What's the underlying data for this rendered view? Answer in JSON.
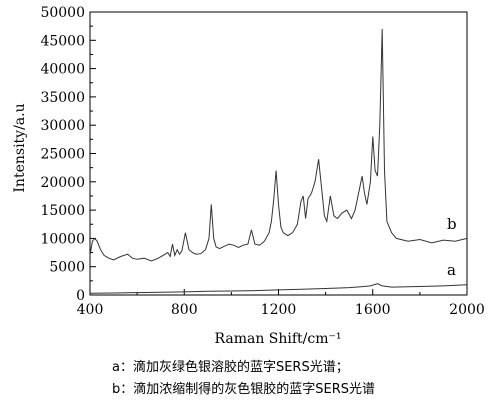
{
  "chart_data": {
    "type": "line",
    "xlabel": "Raman Shift/cm⁻¹",
    "ylabel": "Intensity/a.u",
    "xlim": [
      400,
      2000
    ],
    "ylim": [
      0,
      50000
    ],
    "x_ticks": [
      "400",
      "800",
      "1200",
      "1600",
      "2000"
    ],
    "y_ticks": [
      "0",
      "5000",
      "10000",
      "15000",
      "20000",
      "25000",
      "30000",
      "35000",
      "40000",
      "45000",
      "50000"
    ],
    "grid": false,
    "series": [
      {
        "name": "a",
        "x": [
          400,
          500,
          600,
          700,
          800,
          900,
          1000,
          1100,
          1200,
          1300,
          1400,
          1500,
          1550,
          1590,
          1620,
          1640,
          1680,
          1800,
          1900,
          2000
        ],
        "y": [
          300,
          350,
          420,
          480,
          550,
          650,
          700,
          780,
          900,
          1000,
          1150,
          1300,
          1450,
          1600,
          2000,
          1600,
          1400,
          1500,
          1600,
          1800
        ]
      },
      {
        "name": "b",
        "x": [
          400,
          410,
          420,
          430,
          445,
          460,
          480,
          500,
          530,
          560,
          580,
          600,
          630,
          660,
          690,
          710,
          730,
          740,
          750,
          760,
          770,
          780,
          790,
          805,
          820,
          835,
          850,
          870,
          890,
          905,
          915,
          925,
          935,
          950,
          970,
          990,
          1010,
          1030,
          1050,
          1070,
          1085,
          1100,
          1120,
          1140,
          1160,
          1170,
          1180,
          1190,
          1200,
          1210,
          1220,
          1240,
          1260,
          1280,
          1295,
          1305,
          1315,
          1325,
          1340,
          1355,
          1370,
          1385,
          1395,
          1405,
          1420,
          1435,
          1450,
          1470,
          1490,
          1510,
          1525,
          1540,
          1555,
          1565,
          1575,
          1590,
          1600,
          1610,
          1620,
          1630,
          1640,
          1650,
          1660,
          1680,
          1700,
          1750,
          1800,
          1850,
          1900,
          1950,
          2000
        ],
        "y": [
          7000,
          9500,
          10000,
          9500,
          8000,
          7000,
          6500,
          6200,
          6800,
          7200,
          6500,
          6300,
          6500,
          6000,
          6500,
          7000,
          7500,
          6800,
          9000,
          7000,
          8000,
          7200,
          7800,
          11000,
          8000,
          7500,
          7200,
          7300,
          8000,
          10000,
          16000,
          10000,
          8500,
          8200,
          8600,
          9000,
          8800,
          8400,
          8800,
          9000,
          11500,
          9000,
          8800,
          9500,
          11000,
          13000,
          17000,
          22000,
          16000,
          12000,
          11000,
          10500,
          11000,
          12500,
          16500,
          17500,
          13500,
          17000,
          18000,
          20000,
          24000,
          18000,
          14000,
          13000,
          17500,
          14000,
          13500,
          14500,
          15000,
          13500,
          15000,
          18000,
          21000,
          18000,
          16000,
          20000,
          28000,
          22000,
          21000,
          30000,
          47000,
          22000,
          13000,
          11000,
          10000,
          9500,
          9800,
          9200,
          9700,
          9500,
          10000
        ]
      }
    ],
    "annotations": [
      "a",
      "b"
    ]
  },
  "captions": {
    "a": "a：滴加灰绿色银溶胶的蓝字SERS光谱；",
    "b": "b：滴加浓缩制得的灰色银胶的蓝字SERS光谱"
  }
}
